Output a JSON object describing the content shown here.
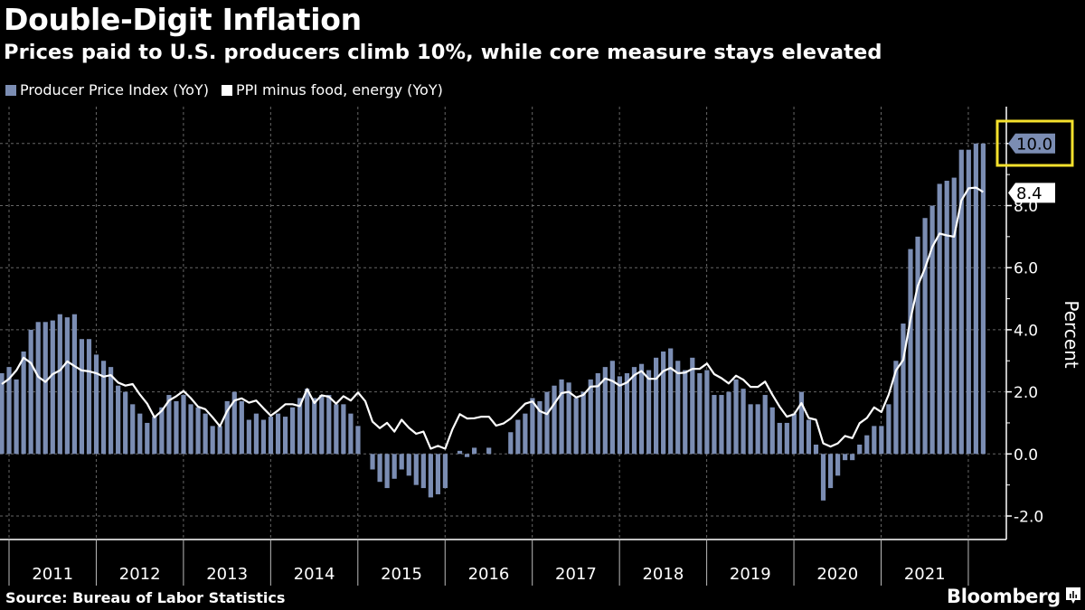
{
  "header": {
    "title": "Double-Digit Inflation",
    "subtitle": "Prices paid to U.S. producers climb 10%, while core measure stays elevated"
  },
  "legend": [
    {
      "label": "Producer Price Index (YoY)",
      "color": "#7b8db3"
    },
    {
      "label": "PPI minus food, energy (YoY)",
      "color": "#ffffff"
    }
  ],
  "footer": {
    "source": "Source: Bureau of Labor Statistics",
    "brand": "Bloomberg"
  },
  "colors": {
    "background": "#000000",
    "bar": "#7b8db3",
    "line": "#ffffff",
    "highlight": "#f5e12d",
    "gridline": "#666666"
  },
  "chart_data": {
    "type": "bar",
    "title": "Double-Digit Inflation",
    "subtitle": "Prices paid to U.S. producers climb 10%, while core measure stays elevated",
    "xlabel": "",
    "ylabel": "Percent",
    "ylim": [
      -2.7,
      11.2
    ],
    "yticks": [
      -2.0,
      0.0,
      2.0,
      4.0,
      6.0,
      8.0,
      10.0
    ],
    "ytick_labels": [
      "-2.0",
      "0.0",
      "2.0",
      "4.0",
      "6.0",
      "8.0",
      "10.0"
    ],
    "x_start": "2010-11",
    "x_end": "2022-02",
    "frequency": "monthly",
    "year_labels": [
      "2011",
      "2012",
      "2013",
      "2014",
      "2015",
      "2016",
      "2017",
      "2018",
      "2019",
      "2020",
      "2021"
    ],
    "grid": true,
    "legend_position": "top-left",
    "series": [
      {
        "name": "Producer Price Index (YoY)",
        "type": "bar",
        "values": [
          2.6,
          2.8,
          2.4,
          3.3,
          4.0,
          4.25,
          4.25,
          4.3,
          4.5,
          4.4,
          4.5,
          3.7,
          3.7,
          3.2,
          3.0,
          2.8,
          2.2,
          2.0,
          1.6,
          1.3,
          1.0,
          1.2,
          1.5,
          1.9,
          1.7,
          1.9,
          1.6,
          1.5,
          1.3,
          0.9,
          0.9,
          1.7,
          2.0,
          1.7,
          1.1,
          1.3,
          1.1,
          1.2,
          1.3,
          1.2,
          1.5,
          1.8,
          2.1,
          1.8,
          1.9,
          1.9,
          1.6,
          1.6,
          1.3,
          0.9,
          0.0,
          -0.5,
          -0.9,
          -1.1,
          -0.8,
          -0.5,
          -0.7,
          -1.0,
          -1.1,
          -1.4,
          -1.3,
          -1.1,
          0.0,
          0.1,
          -0.1,
          0.2,
          0.0,
          0.2,
          0.0,
          0.0,
          0.7,
          1.1,
          1.3,
          1.8,
          1.7,
          2.0,
          2.2,
          2.4,
          2.3,
          1.8,
          2.0,
          2.4,
          2.6,
          2.8,
          3.0,
          2.5,
          2.6,
          2.8,
          2.9,
          2.7,
          3.1,
          3.3,
          3.4,
          3.0,
          2.7,
          3.1,
          2.6,
          2.7,
          1.9,
          1.9,
          2.0,
          2.4,
          2.1,
          1.6,
          1.6,
          1.9,
          1.5,
          1.0,
          1.0,
          1.3,
          2.0,
          1.1,
          0.3,
          -1.5,
          -1.1,
          -0.7,
          -0.2,
          -0.2,
          0.3,
          0.6,
          0.9,
          0.9,
          1.6,
          3.0,
          4.2,
          6.6,
          7.0,
          7.6,
          8.0,
          8.7,
          8.8,
          8.9,
          9.8,
          9.8,
          10.0,
          10.0
        ],
        "last_value_label": "10.0"
      },
      {
        "name": "PPI minus food, energy (YoY)",
        "type": "line",
        "values": [
          2.25,
          2.42,
          2.69,
          3.1,
          2.93,
          2.49,
          2.32,
          2.57,
          2.69,
          2.98,
          2.83,
          2.69,
          2.66,
          2.6,
          2.49,
          2.54,
          2.3,
          2.2,
          2.25,
          1.91,
          1.62,
          1.18,
          1.39,
          1.72,
          1.86,
          2.03,
          1.8,
          1.52,
          1.44,
          1.18,
          0.89,
          1.38,
          1.72,
          1.79,
          1.65,
          1.72,
          1.47,
          1.23,
          1.4,
          1.6,
          1.6,
          1.54,
          2.09,
          1.64,
          1.89,
          1.84,
          1.62,
          1.86,
          1.72,
          1.98,
          1.7,
          1.04,
          0.83,
          1.0,
          0.72,
          1.1,
          0.84,
          0.65,
          0.72,
          0.17,
          0.26,
          0.17,
          0.8,
          1.28,
          1.14,
          1.15,
          1.2,
          1.2,
          0.91,
          0.98,
          1.14,
          1.38,
          1.62,
          1.69,
          1.38,
          1.28,
          1.62,
          1.96,
          2.0,
          1.82,
          1.9,
          2.17,
          2.18,
          2.43,
          2.35,
          2.2,
          2.3,
          2.54,
          2.67,
          2.42,
          2.42,
          2.67,
          2.77,
          2.6,
          2.62,
          2.74,
          2.74,
          2.91,
          2.57,
          2.44,
          2.27,
          2.52,
          2.39,
          2.16,
          2.16,
          2.33,
          1.91,
          1.52,
          1.2,
          1.28,
          1.64,
          1.16,
          1.1,
          0.34,
          0.24,
          0.34,
          0.58,
          0.51,
          0.99,
          1.16,
          1.5,
          1.35,
          1.91,
          2.69,
          3.03,
          4.34,
          5.41,
          5.99,
          6.67,
          7.1,
          7.04,
          7.0,
          8.17,
          8.56,
          8.58,
          8.44
        ],
        "last_value_label": "8.4"
      }
    ],
    "annotations": [
      {
        "text": "10.0",
        "series": "Producer Price Index (YoY)",
        "highlighted": true
      },
      {
        "text": "8.4",
        "series": "PPI minus food, energy (YoY)",
        "highlighted": false
      }
    ]
  }
}
